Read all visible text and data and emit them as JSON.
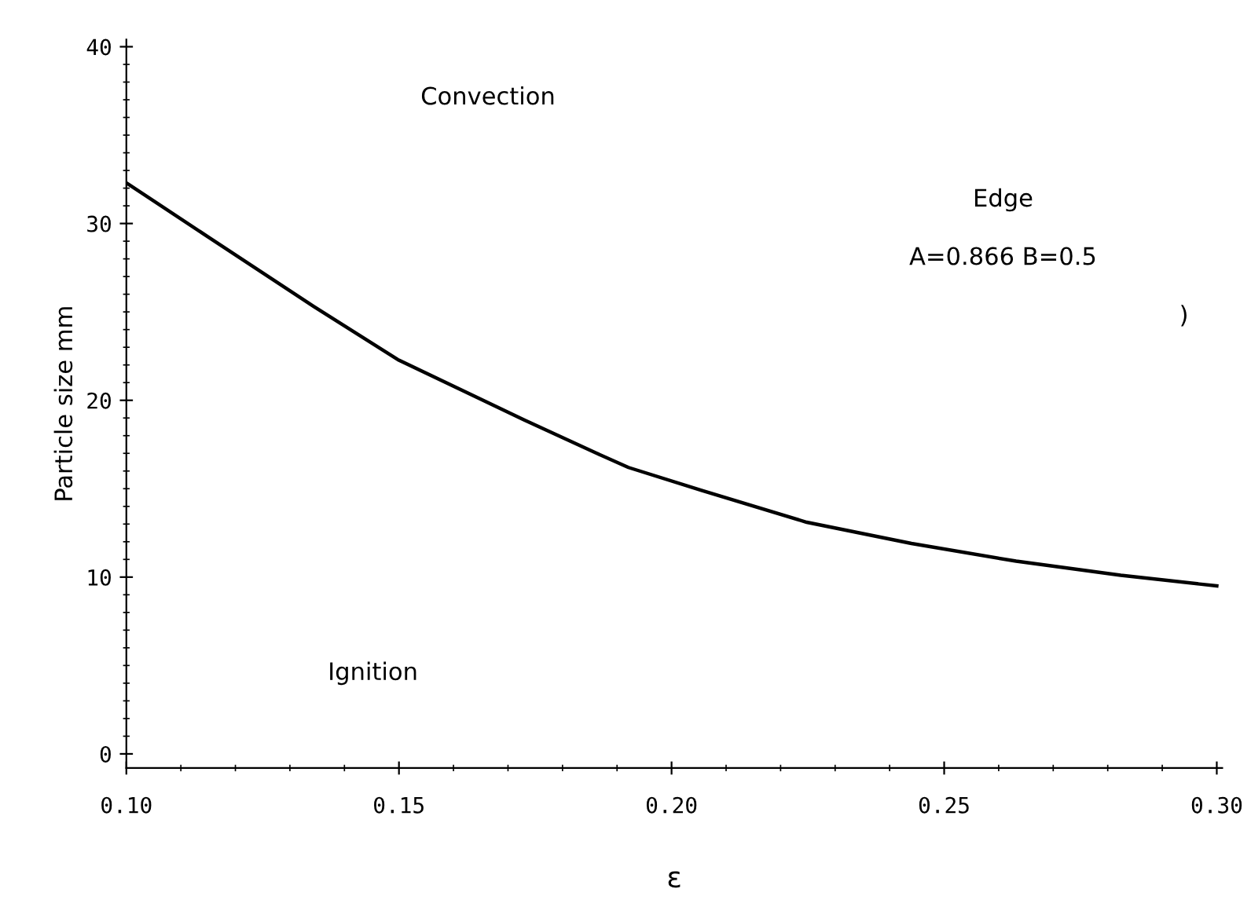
{
  "chart_data": {
    "type": "line",
    "xlabel": "ε",
    "ylabel": "Particle size mm",
    "x": [
      0.1,
      0.1152,
      0.1344,
      0.1498,
      0.1729,
      0.1863,
      0.1921,
      0.2056,
      0.2248,
      0.244,
      0.2632,
      0.2824,
      0.3
    ],
    "series": [
      {
        "color": "#000000",
        "values": [
          32.3,
          29.2,
          25.3,
          22.3,
          18.9,
          17.0,
          16.2,
          14.9,
          13.1,
          11.9,
          10.9,
          10.1,
          9.5
        ]
      }
    ],
    "xlim": [
      0.1,
      0.301
    ],
    "ylim": [
      -0.8,
      40.4
    ],
    "xticks": [
      {
        "value": 0.1,
        "label": "0.10"
      },
      {
        "value": 0.15,
        "label": "0.15"
      },
      {
        "value": 0.2,
        "label": "0.20"
      },
      {
        "value": 0.25,
        "label": "0.25"
      },
      {
        "value": 0.3,
        "label": "0.30"
      }
    ],
    "yticks": [
      0,
      10,
      20,
      30,
      40
    ],
    "annotations": [
      "Convection",
      "Edge",
      "A=0.866 B=0.5",
      ")",
      "Ignition"
    ],
    "grid": false,
    "marker": "none",
    "line_style": "solid"
  }
}
